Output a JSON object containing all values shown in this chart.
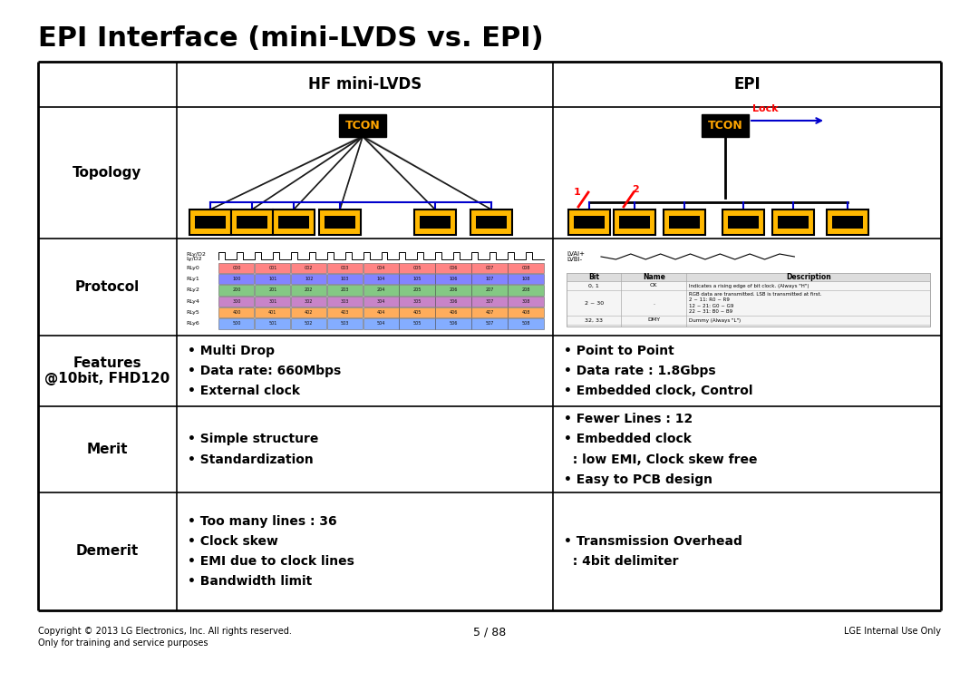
{
  "title": "EPI Interface (mini-LVDS vs. EPI)",
  "title_fontsize": 22,
  "background_color": "#ffffff",
  "col1_header": "HF mini-LVDS",
  "col2_header": "EPI",
  "col1_features": "• Multi Drop\n• Data rate: 660Mbps\n• External clock",
  "col2_features": "• Point to Point\n• Data rate : 1.8Gbps\n• Embedded clock, Control",
  "col1_merit": "• Simple structure\n• Standardization",
  "col2_merit": "• Fewer Lines : 12\n• Embedded clock\n  : low EMI, Clock skew free\n• Easy to PCB design",
  "col1_demerit": "• Too many lines : 36\n• Clock skew\n• EMI due to clock lines\n• Bandwidth limit",
  "col2_demerit": "• Transmission Overhead\n  : 4bit delimiter",
  "footer_left": "Copyright © 2013 LG Electronics, Inc. All rights reserved.\nOnly for training and service purposes",
  "footer_center": "5 / 88",
  "footer_right": "LGE Internal Use Only",
  "tcon_text_color": "#FFA500",
  "module_color": "#FFB800"
}
